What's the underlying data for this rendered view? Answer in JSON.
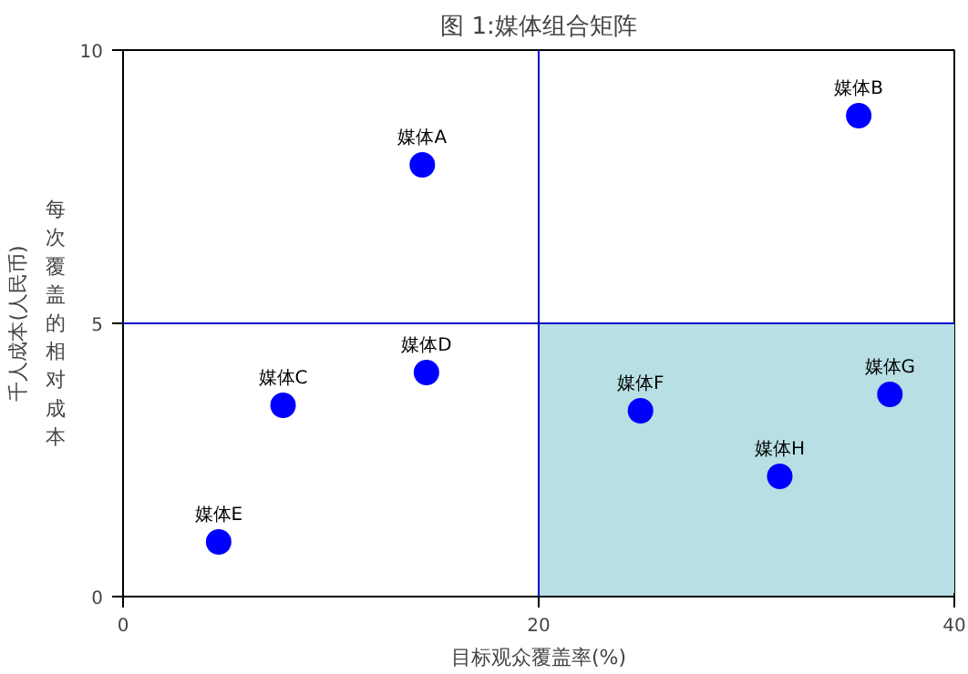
{
  "chart_data": {
    "type": "scatter",
    "title": "图 1:媒体组合矩阵",
    "xlabel": "目标观众覆盖率(%)",
    "ylabel": "千人成本(人民币)",
    "annotations": [
      "每次覆盖的相对成本",
      {
        "text": "媒体A",
        "x": 14.4,
        "y": 7.9
      },
      {
        "text": "媒体B",
        "x": 35.4,
        "y": 8.8
      },
      {
        "text": "媒体C",
        "x": 7.7,
        "y": 3.5
      },
      {
        "text": "媒体D",
        "x": 14.6,
        "y": 4.1
      },
      {
        "text": "媒体E",
        "x": 4.6,
        "y": 1.0
      },
      {
        "text": "媒体F",
        "x": 24.9,
        "y": 3.4
      },
      {
        "text": "媒体G",
        "x": 36.9,
        "y": 3.7
      },
      {
        "text": "媒体H",
        "x": 31.6,
        "y": 2.2
      }
    ],
    "series": [
      {
        "color": "#0000ff",
        "x": [
          14.4,
          35.4,
          7.7,
          14.6,
          4.6,
          24.9,
          36.9,
          31.6
        ],
        "values": [
          7.9,
          8.8,
          3.5,
          4.1,
          1.0,
          3.4,
          3.7,
          2.2
        ]
      }
    ],
    "xlim": [
      0,
      40
    ],
    "ylim": [
      0,
      10
    ],
    "xticks": [
      0,
      20,
      40
    ],
    "yticks": [
      0,
      5,
      10
    ],
    "ref_lines": [
      {
        "axis": "x",
        "value": 20,
        "color": "#0000cc"
      },
      {
        "axis": "y",
        "value": 5,
        "color": "#0000cc"
      }
    ],
    "bands": [
      {
        "axis": "x",
        "from": 20,
        "to": 40,
        "color": "#b8dfe3"
      }
    ],
    "marker": "circle"
  }
}
